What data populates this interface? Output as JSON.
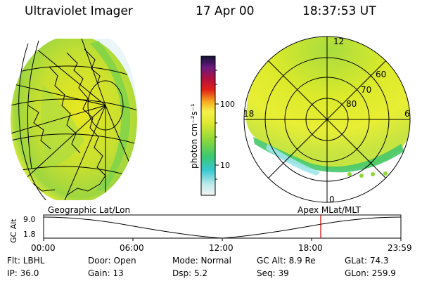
{
  "header": {
    "title": "Ultraviolet Imager",
    "date": "17 Apr 00",
    "time": "18:37:53 UT"
  },
  "colorbar": {
    "ticks": [
      "100",
      "10"
    ],
    "label": "photon cm⁻²s⁻¹"
  },
  "polar": {
    "mlt_top": "12",
    "mlt_left": "18",
    "mlt_right": "6",
    "mlt_bottom": "0",
    "lat_labels": [
      "60",
      "70",
      "80"
    ]
  },
  "timeline": {
    "left_label": "Geographic Lat/Lon",
    "right_label": "Apex  MLat/MLT",
    "axis_title": "GC Alt",
    "y_ticks": [
      "9.0",
      "1.8"
    ],
    "x_ticks": [
      "00:00",
      "06:00",
      "12:00",
      "18:00",
      "23:59"
    ],
    "marker_color": "#cc0000"
  },
  "status": {
    "row1": [
      "Flt: LBHL",
      "Door: Open",
      "Mode: Normal",
      "GC Alt: 8.9 Re",
      "GLat:  74.3"
    ],
    "row2": [
      "IP: 36.0",
      "Gain: 13",
      "Dsp:    5.2",
      "Seq: 39",
      "GLon: 259.9"
    ]
  }
}
